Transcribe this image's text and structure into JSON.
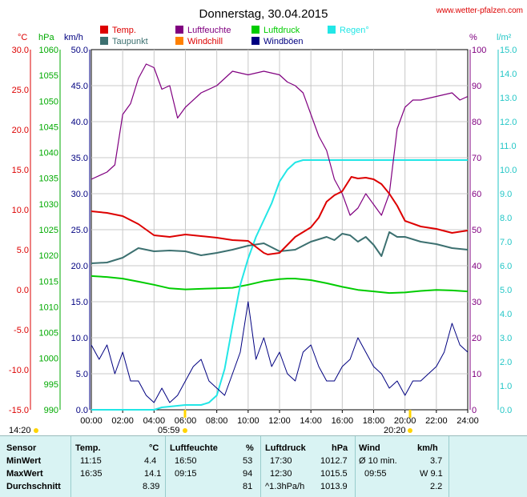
{
  "title": "Donnerstag, 30.04.2015",
  "source": "www.wetter-pfalzen.com",
  "colors": {
    "temp": "#dd0000",
    "dewpoint": "#3c7070",
    "humidity": "#800080",
    "windchill": "#ff8000",
    "pressure": "#00cc00",
    "gust": "#000080",
    "rain": "#22e6e6",
    "wind": "#000080"
  },
  "axis_units": {
    "temp": "°C",
    "pressure": "hPa",
    "wind": "km/h",
    "humidity": "%",
    "rain": "l/m²"
  },
  "sun": {
    "rise": "05:59",
    "set": "20:20",
    "daylight_start": "14:20"
  },
  "chart_data": {
    "type": "line",
    "title": "Donnerstag, 30.04.2015",
    "legend": [
      "Temp.",
      "Luftfeuchte",
      "Luftdruck",
      "Regen°",
      "Taupunkt",
      "Windchill",
      "Windböen"
    ],
    "x_ticks": [
      "00:00",
      "02:00",
      "04:00",
      "06:00",
      "08:00",
      "10:00",
      "12:00",
      "14:00",
      "16:00",
      "18:00",
      "20:00",
      "22:00",
      "24:00"
    ],
    "axes": {
      "temp": {
        "range": [
          -15,
          30
        ],
        "ticks": [
          "30.0",
          "25.0",
          "20.0",
          "15.0",
          "10.0",
          "5.0",
          "0.0",
          "-5.0",
          "-10.0",
          "-15.0"
        ]
      },
      "pressure": {
        "range": [
          990,
          1060
        ],
        "ticks": [
          "1060",
          "1055",
          "1050",
          "1045",
          "1040",
          "1035",
          "1030",
          "1025",
          "1020",
          "1015",
          "1010",
          "1005",
          "1000",
          "995",
          "990"
        ]
      },
      "wind": {
        "range": [
          0,
          50
        ],
        "ticks": [
          "50.0",
          "45.0",
          "40.0",
          "35.0",
          "30.0",
          "25.0",
          "20.0",
          "15.0",
          "10.0",
          "5.0",
          "0.0"
        ]
      },
      "humidity": {
        "range": [
          0,
          100
        ],
        "ticks": [
          "100",
          "90",
          "80",
          "70",
          "60",
          "50",
          "40",
          "30",
          "20",
          "10",
          "0"
        ]
      },
      "rain": {
        "range": [
          0,
          15
        ],
        "ticks": [
          "15.0",
          "14.0",
          "13.0",
          "12.0",
          "11.0",
          "10.0",
          "9.0",
          "8.0",
          "7.0",
          "6.0",
          "5.0",
          "4.0",
          "3.0",
          "2.0",
          "1.0",
          "0.0"
        ]
      }
    },
    "series": [
      {
        "name": "Temp.",
        "axis": "temp",
        "x": [
          0,
          1,
          2,
          3,
          4,
          5,
          6,
          7,
          8,
          9,
          10,
          11,
          11.25,
          12,
          13,
          14,
          14.5,
          15,
          15.5,
          16,
          16.58,
          17,
          17.5,
          18,
          18.5,
          19,
          19.5,
          20,
          21,
          22,
          23,
          24
        ],
        "y": [
          9.8,
          9.6,
          9.2,
          8.2,
          6.8,
          6.6,
          6.9,
          6.7,
          6.5,
          6.2,
          6.1,
          4.6,
          4.4,
          4.6,
          6.6,
          7.8,
          9.0,
          11.0,
          11.8,
          12.3,
          14.1,
          13.9,
          14.0,
          13.8,
          13.2,
          12.0,
          10.5,
          8.6,
          7.9,
          7.6,
          7.1,
          7.4
        ]
      },
      {
        "name": "Taupunkt",
        "axis": "temp",
        "x": [
          0,
          1,
          2,
          3,
          4,
          5,
          6,
          7,
          8,
          9,
          10,
          11,
          12,
          13,
          14,
          15,
          15.5,
          16,
          16.5,
          17,
          17.5,
          18,
          18.5,
          19,
          19.5,
          20,
          21,
          22,
          23,
          24
        ],
        "y": [
          3.3,
          3.4,
          4.0,
          5.2,
          4.8,
          4.9,
          4.8,
          4.3,
          4.6,
          5.0,
          5.5,
          5.8,
          4.8,
          5.0,
          6.0,
          6.6,
          6.2,
          7.0,
          6.8,
          6.0,
          6.6,
          5.6,
          4.2,
          7.2,
          6.6,
          6.6,
          6.0,
          5.7,
          5.2,
          5.0
        ]
      },
      {
        "name": "Luftfeuchte",
        "axis": "humidity",
        "x": [
          0,
          1,
          1.5,
          2,
          2.5,
          3,
          3.5,
          4,
          4.5,
          5,
          5.5,
          6,
          7,
          8,
          9,
          10,
          11,
          12,
          12.5,
          13,
          13.5,
          14,
          14.5,
          15,
          15.5,
          16,
          16.5,
          17,
          17.5,
          18,
          18.5,
          19,
          19.5,
          20,
          20.5,
          21,
          22,
          23,
          23.5,
          24
        ],
        "y": [
          64,
          66,
          68,
          82,
          85,
          92,
          96,
          95,
          89,
          90,
          81,
          84,
          88,
          90,
          94,
          93,
          94,
          93,
          91,
          90,
          88,
          82,
          76,
          72,
          64,
          60,
          54,
          56,
          60,
          57,
          54,
          60,
          78,
          84,
          86,
          86,
          87,
          88,
          86,
          87
        ]
      },
      {
        "name": "Luftdruck",
        "axis": "pressure",
        "x": [
          0,
          1,
          2,
          3,
          4,
          5,
          6,
          7,
          8,
          9,
          10,
          11,
          12,
          12.5,
          13,
          14,
          15,
          16,
          17,
          18,
          19,
          20,
          21,
          22,
          23,
          24
        ],
        "y": [
          1016.0,
          1015.8,
          1015.5,
          1014.9,
          1014.3,
          1013.6,
          1013.4,
          1013.5,
          1013.6,
          1013.7,
          1014.3,
          1015.0,
          1015.4,
          1015.5,
          1015.5,
          1015.2,
          1014.6,
          1013.9,
          1013.3,
          1013.0,
          1012.7,
          1012.8,
          1013.1,
          1013.3,
          1013.2,
          1013.0
        ]
      },
      {
        "name": "Regen°",
        "axis": "rain",
        "x": [
          0,
          4,
          4.5,
          6,
          7,
          7.5,
          8,
          8.5,
          9,
          9.5,
          10,
          10.5,
          11,
          11.5,
          12,
          12.5,
          13,
          13.5,
          14,
          15,
          16,
          18,
          20,
          22,
          24
        ],
        "y": [
          0,
          0,
          0.1,
          0.2,
          0.2,
          0.3,
          0.6,
          1.7,
          3.5,
          5.2,
          6.3,
          7.2,
          7.9,
          8.6,
          9.5,
          10.0,
          10.3,
          10.4,
          10.4,
          10.4,
          10.4,
          10.4,
          10.4,
          10.4,
          10.4
        ]
      },
      {
        "name": "Windböen",
        "axis": "wind",
        "x": [
          0,
          0.5,
          1,
          1.5,
          2,
          2.5,
          3,
          3.5,
          4,
          4.5,
          5,
          5.5,
          6,
          6.5,
          7,
          7.5,
          8,
          8.5,
          9,
          9.5,
          10,
          10.5,
          11,
          11.5,
          12,
          12.5,
          13,
          13.5,
          14,
          14.5,
          15,
          15.5,
          16,
          16.5,
          17,
          17.5,
          18,
          18.5,
          19,
          19.5,
          20,
          20.5,
          21,
          21.5,
          22,
          22.5,
          23,
          23.5,
          24
        ],
        "y": [
          9,
          7,
          9,
          5,
          8,
          4,
          4,
          2,
          1,
          3,
          1,
          2,
          4,
          6,
          7,
          4,
          3,
          2,
          5,
          8,
          15,
          7,
          10,
          6,
          8,
          5,
          4,
          8,
          9,
          6,
          4,
          4,
          6,
          7,
          10,
          8,
          6,
          5,
          3,
          4,
          2,
          4,
          4,
          5,
          6,
          8,
          12,
          9,
          8
        ]
      }
    ]
  },
  "stats": {
    "headers": {
      "sensor": "Sensor",
      "temp": "Temp.",
      "temp_unit": "°C",
      "hum": "Luftfeuchte",
      "hum_unit": "%",
      "press": "Luftdruck",
      "press_unit": "hPa",
      "wind": "Wind",
      "wind_unit": "km/h"
    },
    "rows": [
      {
        "label": "MinWert",
        "temp_time": "11:15",
        "temp_val": "4.4",
        "hum_time": "16:50",
        "hum_val": "53",
        "press_time": "17:30",
        "press_val": "1012.7",
        "wind_time": "Ø 10 min.",
        "wind_val": "3.7"
      },
      {
        "label": "MaxWert",
        "temp_time": "16:35",
        "temp_val": "14.1",
        "hum_time": "09:15",
        "hum_val": "94",
        "press_time": "12:30",
        "press_val": "1015.5",
        "wind_time": "09:55",
        "wind_val": "W 9.1"
      },
      {
        "label": "Durchschnitt",
        "temp_time": "",
        "temp_val": "8.39",
        "hum_time": "",
        "hum_val": "81",
        "press_time": "^1.3hPa/h",
        "press_val": "1013.9",
        "wind_time": "",
        "wind_val": "2.2"
      }
    ]
  }
}
